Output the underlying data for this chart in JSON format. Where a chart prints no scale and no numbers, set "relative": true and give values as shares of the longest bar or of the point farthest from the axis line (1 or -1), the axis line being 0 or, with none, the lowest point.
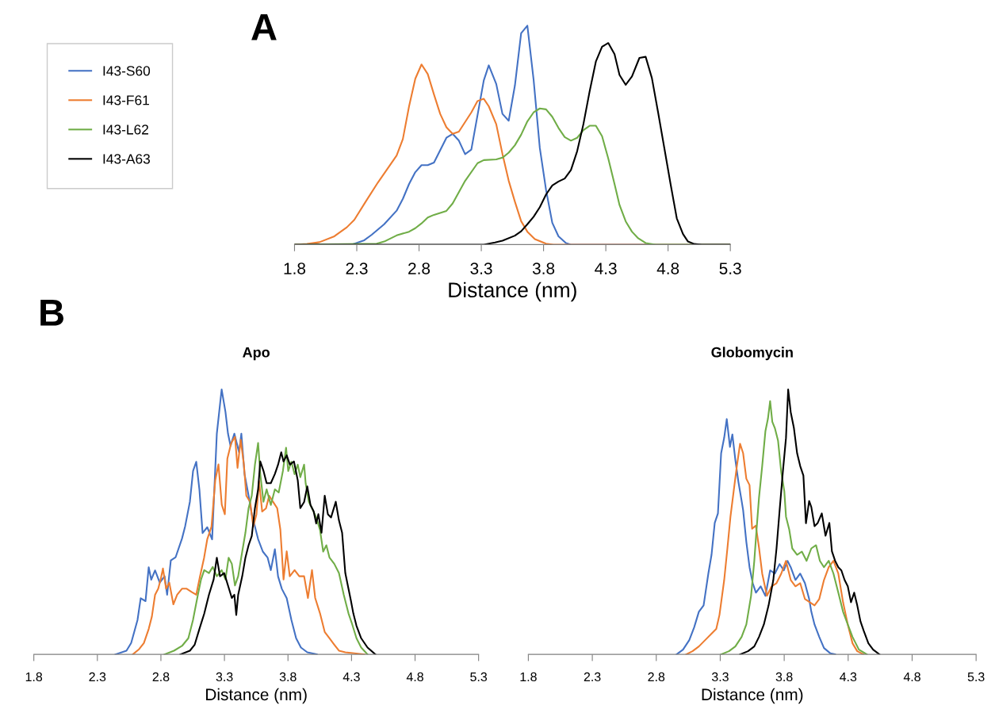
{
  "chart_data": [
    {
      "type": "line",
      "xlabel": "Distance (nm)",
      "xlim": [
        1.8,
        5.3
      ],
      "xticks": [
        1.8,
        2.3,
        2.8,
        3.3,
        3.8,
        4.3,
        4.8,
        5.3
      ],
      "relative": true,
      "tick_labels": "x",
      "legend": "left",
      "annotations": [
        "A"
      ],
      "series": [
        {
          "name": "I43-S60",
          "color": "#4472c4",
          "x": [
            1.8,
            2.26,
            2.36,
            2.42,
            2.52,
            2.62,
            2.67,
            2.72,
            2.77,
            2.82,
            2.87,
            2.92,
            3.02,
            3.07,
            3.12,
            3.17,
            3.22,
            3.32,
            3.36,
            3.42,
            3.47,
            3.52,
            3.57,
            3.62,
            3.67,
            3.72,
            3.77,
            3.82,
            3.87,
            3.92,
            3.98,
            4.02,
            5.3
          ],
          "values": [
            0,
            0,
            0.02,
            0.045,
            0.093,
            0.155,
            0.209,
            0.277,
            0.331,
            0.363,
            0.363,
            0.375,
            0.488,
            0.506,
            0.475,
            0.413,
            0.434,
            0.75,
            0.819,
            0.734,
            0.597,
            0.566,
            0.727,
            0.966,
            1,
            0.754,
            0.441,
            0.25,
            0.1,
            0.038,
            0.007,
            0,
            0
          ]
        },
        {
          "name": "I43-F61",
          "color": "#ed7d31",
          "x": [
            1.8,
            1.9,
            2.0,
            2.12,
            2.22,
            2.28,
            2.37,
            2.47,
            2.62,
            2.67,
            2.72,
            2.77,
            2.82,
            2.87,
            2.92,
            2.97,
            3.02,
            3.07,
            3.12,
            3.22,
            3.27,
            3.32,
            3.36,
            3.42,
            3.47,
            3.52,
            3.57,
            3.62,
            3.67,
            3.73,
            3.82,
            3.88,
            5.3
          ],
          "values": [
            0,
            0.003,
            0.011,
            0.038,
            0.079,
            0.113,
            0.195,
            0.284,
            0.407,
            0.482,
            0.632,
            0.758,
            0.823,
            0.779,
            0.686,
            0.597,
            0.536,
            0.506,
            0.516,
            0.604,
            0.656,
            0.666,
            0.632,
            0.55,
            0.414,
            0.292,
            0.196,
            0.107,
            0.059,
            0.025,
            0.004,
            0,
            0
          ]
        },
        {
          "name": "I43-L62",
          "color": "#70ad47",
          "x": [
            1.8,
            2.46,
            2.52,
            2.62,
            2.72,
            2.77,
            2.82,
            2.87,
            2.92,
            3.02,
            3.07,
            3.17,
            3.27,
            3.32,
            3.42,
            3.47,
            3.52,
            3.57,
            3.62,
            3.67,
            3.72,
            3.77,
            3.82,
            3.87,
            3.92,
            3.97,
            4.02,
            4.07,
            4.12,
            4.17,
            4.22,
            4.27,
            4.32,
            4.37,
            4.41,
            4.46,
            4.51,
            4.56,
            4.62,
            4.7,
            5.3
          ],
          "values": [
            0,
            0.004,
            0.014,
            0.042,
            0.059,
            0.075,
            0.097,
            0.124,
            0.136,
            0.154,
            0.188,
            0.291,
            0.372,
            0.386,
            0.389,
            0.397,
            0.42,
            0.454,
            0.502,
            0.563,
            0.604,
            0.622,
            0.618,
            0.584,
            0.533,
            0.491,
            0.475,
            0.488,
            0.523,
            0.543,
            0.543,
            0.495,
            0.393,
            0.277,
            0.181,
            0.106,
            0.059,
            0.029,
            0.007,
            0,
            0
          ]
        },
        {
          "name": "I43-A63",
          "color": "#000000",
          "x": [
            1.8,
            3.32,
            3.41,
            3.47,
            3.57,
            3.62,
            3.67,
            3.72,
            3.77,
            3.82,
            3.87,
            3.92,
            3.97,
            4.02,
            4.07,
            4.12,
            4.17,
            4.22,
            4.27,
            4.32,
            4.37,
            4.41,
            4.46,
            4.51,
            4.57,
            4.62,
            4.67,
            4.72,
            4.77,
            4.82,
            4.87,
            4.92,
            4.96,
            5.01,
            5.07,
            5.3
          ],
          "values": [
            0,
            0,
            0.01,
            0.018,
            0.041,
            0.061,
            0.093,
            0.127,
            0.171,
            0.229,
            0.27,
            0.288,
            0.302,
            0.341,
            0.427,
            0.55,
            0.7,
            0.836,
            0.904,
            0.921,
            0.87,
            0.775,
            0.73,
            0.768,
            0.853,
            0.858,
            0.761,
            0.604,
            0.441,
            0.277,
            0.12,
            0.048,
            0.014,
            0.003,
            0,
            0
          ]
        }
      ]
    },
    {
      "type": "line",
      "title": "Apo",
      "xlabel": "Distance (nm)",
      "xlim": [
        1.8,
        5.3
      ],
      "xticks": [
        1.8,
        2.3,
        2.8,
        3.3,
        3.8,
        4.3,
        4.8,
        5.3
      ],
      "relative": true,
      "tick_labels": "x",
      "annotations": [
        "B"
      ],
      "series": [
        {
          "color": "#4472c4",
          "x": [
            2.442,
            2.529,
            2.566,
            2.616,
            2.641,
            2.679,
            2.704,
            2.724,
            2.754,
            2.791,
            2.829,
            2.849,
            2.878,
            2.916,
            2.966,
            2.991,
            3.028,
            3.053,
            3.078,
            3.103,
            3.128,
            3.165,
            3.203,
            3.24,
            3.278,
            3.308,
            3.328,
            3.348,
            3.378,
            3.415,
            3.433,
            3.458,
            3.49,
            3.515,
            3.54,
            3.565,
            3.602,
            3.64,
            3.665,
            3.697,
            3.722,
            3.752,
            3.79,
            3.827,
            3.864,
            3.902,
            3.952,
            4.027
          ],
          "values": [
            0,
            0.014,
            0.043,
            0.13,
            0.212,
            0.201,
            0.329,
            0.282,
            0.317,
            0.271,
            0.295,
            0.225,
            0.355,
            0.367,
            0.437,
            0.484,
            0.576,
            0.692,
            0.727,
            0.622,
            0.458,
            0.48,
            0.434,
            0.833,
            1,
            0.915,
            0.833,
            0.787,
            0.833,
            0.763,
            0.833,
            0.681,
            0.599,
            0.529,
            0.482,
            0.435,
            0.388,
            0.365,
            0.318,
            0.397,
            0.294,
            0.247,
            0.212,
            0.13,
            0.061,
            0.026,
            0.008,
            0
          ]
        },
        {
          "color": "#ed7d31",
          "x": [
            2.579,
            2.629,
            2.666,
            2.704,
            2.729,
            2.754,
            2.779,
            2.798,
            2.816,
            2.841,
            2.866,
            2.898,
            2.928,
            2.966,
            3.003,
            3.041,
            3.078,
            3.108,
            3.14,
            3.165,
            3.198,
            3.228,
            3.253,
            3.279,
            3.303,
            3.323,
            3.353,
            3.383,
            3.403,
            3.428,
            3.453,
            3.472,
            3.502,
            3.527,
            3.552,
            3.572,
            3.597,
            3.627,
            3.652,
            3.682,
            3.715,
            3.74,
            3.765,
            3.79,
            3.814,
            3.852,
            3.889,
            3.927,
            3.957,
            3.989,
            4.014,
            4.052,
            4.089,
            4.127,
            4.164,
            4.201,
            4.251,
            4.401
          ],
          "values": [
            0,
            0.02,
            0.043,
            0.096,
            0.143,
            0.225,
            0.248,
            0.283,
            0.324,
            0.248,
            0.271,
            0.189,
            0.225,
            0.248,
            0.248,
            0.236,
            0.225,
            0.295,
            0.365,
            0.435,
            0.482,
            0.658,
            0.717,
            0.565,
            0.529,
            0.739,
            0.797,
            0.821,
            0.704,
            0.81,
            0.716,
            0.599,
            0.576,
            0.482,
            0.529,
            0.655,
            0.539,
            0.551,
            0.599,
            0.576,
            0.552,
            0.471,
            0.283,
            0.389,
            0.295,
            0.318,
            0.295,
            0.295,
            0.213,
            0.318,
            0.213,
            0.155,
            0.085,
            0.061,
            0.037,
            0.014,
            0.008,
            0
          ]
        },
        {
          "color": "#70ad47",
          "x": [
            2.828,
            2.903,
            2.966,
            3.016,
            3.053,
            3.091,
            3.116,
            3.141,
            3.178,
            3.208,
            3.24,
            3.278,
            3.308,
            3.333,
            3.358,
            3.383,
            3.408,
            3.44,
            3.465,
            3.49,
            3.515,
            3.54,
            3.565,
            3.582,
            3.607,
            3.632,
            3.665,
            3.697,
            3.727,
            3.76,
            3.785,
            3.802,
            3.827,
            3.852,
            3.877,
            3.897,
            3.927,
            3.939,
            3.964,
            3.989,
            4.022,
            4.052,
            4.077,
            4.102,
            4.127,
            4.164,
            4.201,
            4.239,
            4.276,
            4.301,
            4.339,
            4.376,
            4.426
          ],
          "values": [
            0,
            0.014,
            0.032,
            0.061,
            0.131,
            0.225,
            0.283,
            0.318,
            0.307,
            0.33,
            0.295,
            0.318,
            0.283,
            0.365,
            0.342,
            0.26,
            0.295,
            0.388,
            0.459,
            0.552,
            0.599,
            0.716,
            0.798,
            0.681,
            0.576,
            0.623,
            0.564,
            0.623,
            0.611,
            0.692,
            0.78,
            0.692,
            0.727,
            0.68,
            0.716,
            0.669,
            0.716,
            0.646,
            0.576,
            0.552,
            0.517,
            0.47,
            0.388,
            0.412,
            0.365,
            0.342,
            0.307,
            0.225,
            0.155,
            0.12,
            0.061,
            0.026,
            0
          ]
        },
        {
          "color": "#000000",
          "x": [
            2.953,
            3.028,
            3.066,
            3.103,
            3.141,
            3.178,
            3.215,
            3.24,
            3.265,
            3.298,
            3.328,
            3.358,
            3.378,
            3.393,
            3.408,
            3.44,
            3.465,
            3.49,
            3.515,
            3.54,
            3.565,
            3.582,
            3.607,
            3.632,
            3.665,
            3.697,
            3.722,
            3.747,
            3.765,
            3.79,
            3.815,
            3.847,
            3.877,
            3.897,
            3.927,
            3.952,
            3.977,
            4.002,
            4.022,
            4.039,
            4.064,
            4.089,
            4.114,
            4.139,
            4.176,
            4.201,
            4.226,
            4.251,
            4.276,
            4.296,
            4.314,
            4.339,
            4.376,
            4.426,
            4.488
          ],
          "values": [
            0,
            0.014,
            0.037,
            0.096,
            0.154,
            0.225,
            0.283,
            0.365,
            0.295,
            0.307,
            0.26,
            0.213,
            0.225,
            0.149,
            0.225,
            0.295,
            0.365,
            0.412,
            0.447,
            0.552,
            0.623,
            0.728,
            0.693,
            0.646,
            0.646,
            0.681,
            0.716,
            0.763,
            0.728,
            0.751,
            0.716,
            0.728,
            0.657,
            0.552,
            0.575,
            0.634,
            0.564,
            0.54,
            0.494,
            0.529,
            0.459,
            0.599,
            0.529,
            0.517,
            0.576,
            0.506,
            0.459,
            0.307,
            0.248,
            0.201,
            0.155,
            0.108,
            0.061,
            0.026,
            0
          ]
        }
      ]
    },
    {
      "type": "line",
      "title": "Globomycin",
      "xlabel": "Distance (nm)",
      "xlim": [
        1.8,
        5.3
      ],
      "xticks": [
        1.8,
        2.3,
        2.8,
        3.3,
        3.8,
        4.3,
        4.8,
        5.3
      ],
      "relative": true,
      "tick_labels": "x",
      "series": [
        {
          "color": "#4472c4",
          "x": [
            2.959,
            3.009,
            3.058,
            3.096,
            3.133,
            3.17,
            3.207,
            3.232,
            3.257,
            3.282,
            3.307,
            3.331,
            3.351,
            3.376,
            3.395,
            3.418,
            3.442,
            3.467,
            3.479,
            3.504,
            3.529,
            3.554,
            3.579,
            3.616,
            3.653,
            3.69,
            3.727,
            3.764,
            3.797,
            3.826,
            3.851,
            3.888,
            3.925,
            3.962,
            3.995,
            4.012,
            4.037,
            4.074,
            4.111,
            4.161,
            4.198
          ],
          "values": [
            0,
            0.018,
            0.054,
            0.102,
            0.161,
            0.185,
            0.305,
            0.376,
            0.496,
            0.532,
            0.759,
            0.818,
            0.888,
            0.783,
            0.83,
            0.735,
            0.651,
            0.58,
            0.544,
            0.424,
            0.329,
            0.269,
            0.233,
            0.257,
            0.221,
            0.317,
            0.305,
            0.341,
            0.317,
            0.353,
            0.329,
            0.281,
            0.305,
            0.269,
            0.209,
            0.161,
            0.113,
            0.066,
            0.024,
            0.004,
            0
          ]
        },
        {
          "color": "#ed7d31",
          "x": [
            3.034,
            3.083,
            3.133,
            3.182,
            3.232,
            3.269,
            3.294,
            3.331,
            3.356,
            3.38,
            3.405,
            3.43,
            3.455,
            3.479,
            3.504,
            3.529,
            3.549,
            3.578,
            3.603,
            3.628,
            3.665,
            3.702,
            3.74,
            3.777,
            3.814,
            3.851,
            3.888,
            3.925,
            3.962,
            4.0,
            4.037,
            4.074,
            4.111,
            4.148,
            4.185,
            4.223,
            4.26,
            4.297,
            4.334,
            4.371,
            4.421
          ],
          "values": [
            0,
            0.012,
            0.03,
            0.054,
            0.078,
            0.096,
            0.149,
            0.281,
            0.4,
            0.52,
            0.616,
            0.711,
            0.795,
            0.759,
            0.663,
            0.639,
            0.474,
            0.486,
            0.403,
            0.305,
            0.221,
            0.257,
            0.269,
            0.305,
            0.353,
            0.281,
            0.257,
            0.269,
            0.209,
            0.197,
            0.185,
            0.209,
            0.281,
            0.329,
            0.353,
            0.305,
            0.197,
            0.113,
            0.042,
            0.012,
            0
          ]
        },
        {
          "color": "#70ad47",
          "x": [
            3.306,
            3.368,
            3.418,
            3.467,
            3.504,
            3.541,
            3.566,
            3.584,
            3.603,
            3.628,
            3.653,
            3.673,
            3.69,
            3.707,
            3.727,
            3.752,
            3.777,
            3.801,
            3.814,
            3.839,
            3.863,
            3.901,
            3.938,
            3.975,
            4.012,
            4.049,
            4.079,
            4.111,
            4.148,
            4.185,
            4.223,
            4.26,
            4.297,
            4.334,
            4.384,
            4.446
          ],
          "values": [
            0,
            0.012,
            0.03,
            0.066,
            0.113,
            0.221,
            0.352,
            0.472,
            0.591,
            0.711,
            0.842,
            0.89,
            0.956,
            0.878,
            0.854,
            0.806,
            0.687,
            0.615,
            0.52,
            0.472,
            0.4,
            0.376,
            0.388,
            0.353,
            0.4,
            0.412,
            0.353,
            0.329,
            0.353,
            0.305,
            0.233,
            0.161,
            0.113,
            0.066,
            0.018,
            0
          ]
        },
        {
          "color": "#000000",
          "x": [
            3.455,
            3.517,
            3.566,
            3.603,
            3.641,
            3.678,
            3.715,
            3.74,
            3.764,
            3.789,
            3.814,
            3.831,
            3.851,
            3.876,
            3.901,
            3.925,
            3.95,
            3.97,
            3.995,
            4.012,
            4.037,
            4.062,
            4.094,
            4.123,
            4.153,
            4.173,
            4.198,
            4.223,
            4.247,
            4.272,
            4.297,
            4.322,
            4.347,
            4.371,
            4.396,
            4.421,
            4.458,
            4.495,
            4.545
          ],
          "values": [
            0,
            0.012,
            0.03,
            0.066,
            0.113,
            0.185,
            0.281,
            0.4,
            0.543,
            0.686,
            0.817,
            1,
            0.914,
            0.854,
            0.759,
            0.711,
            0.675,
            0.495,
            0.579,
            0.556,
            0.484,
            0.496,
            0.532,
            0.448,
            0.496,
            0.389,
            0.353,
            0.329,
            0.317,
            0.281,
            0.257,
            0.197,
            0.233,
            0.185,
            0.125,
            0.09,
            0.042,
            0.018,
            0
          ]
        }
      ]
    }
  ]
}
